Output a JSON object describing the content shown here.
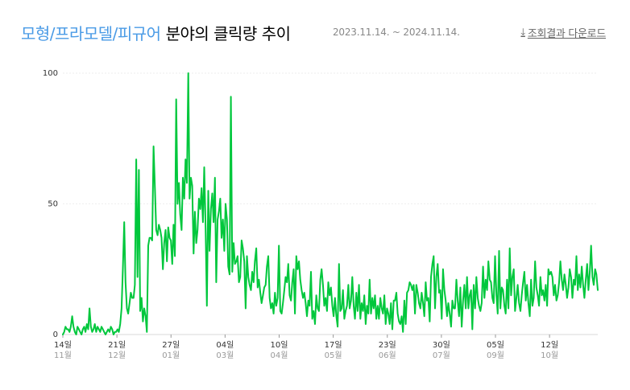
{
  "header": {
    "category": "모형/프라모델/피규어",
    "title_suffix": "분야의 클릭량 추이",
    "date_range": "2023.11.14. ~ 2024.11.14.",
    "download_label": "조회결과 다운로드"
  },
  "chart_data": {
    "type": "line",
    "title": "모형/프라모델/피규어 분야의 클릭량 추이",
    "xlabel": "",
    "ylabel": "",
    "x_start": "2023-11-14",
    "x_end": "2024-11-14",
    "ylim": [
      0,
      100
    ],
    "y_ticks": [
      0,
      50,
      100
    ],
    "grid": true,
    "color": "#00c73c",
    "x_ticks": [
      {
        "day": "14일",
        "month": "11월",
        "date": "2023-11-14"
      },
      {
        "day": "21일",
        "month": "12월",
        "date": "2023-12-21"
      },
      {
        "day": "27일",
        "month": "01월",
        "date": "2024-01-27"
      },
      {
        "day": "04일",
        "month": "03월",
        "date": "2024-03-04"
      },
      {
        "day": "10일",
        "month": "04월",
        "date": "2024-04-10"
      },
      {
        "day": "17일",
        "month": "05월",
        "date": "2024-05-17"
      },
      {
        "day": "23일",
        "month": "06월",
        "date": "2024-06-23"
      },
      {
        "day": "30일",
        "month": "07월",
        "date": "2024-07-30"
      },
      {
        "day": "05일",
        "month": "09월",
        "date": "2024-09-05"
      },
      {
        "day": "12일",
        "month": "10월",
        "date": "2024-10-12"
      }
    ],
    "values": [
      0,
      1,
      3,
      2,
      2,
      1,
      3,
      7,
      3,
      1,
      0,
      3,
      2,
      1,
      0,
      2,
      3,
      1,
      4,
      2,
      10,
      3,
      1,
      2,
      4,
      1,
      3,
      2,
      1,
      3,
      2,
      1,
      0,
      1,
      2,
      1,
      3,
      2,
      0,
      1,
      1,
      2,
      1,
      4,
      10,
      25,
      43,
      20,
      10,
      8,
      12,
      16,
      14,
      14,
      19,
      67,
      22,
      63,
      9,
      14,
      5,
      10,
      7,
      1,
      34,
      37,
      37,
      36,
      72,
      56,
      40,
      38,
      42,
      40,
      37,
      25,
      35,
      40,
      28,
      41,
      37,
      36,
      27,
      42,
      30,
      90,
      50,
      58,
      46,
      40,
      60,
      52,
      67,
      58,
      100,
      52,
      60,
      57,
      31,
      47,
      35,
      40,
      52,
      48,
      56,
      43,
      64,
      41,
      11,
      55,
      32,
      48,
      54,
      43,
      60,
      20,
      44,
      47,
      52,
      37,
      44,
      32,
      50,
      44,
      26,
      23,
      91,
      24,
      35,
      27,
      28,
      30,
      20,
      22,
      36,
      33,
      28,
      10,
      30,
      22,
      19,
      17,
      24,
      20,
      28,
      33,
      18,
      21,
      16,
      12,
      15,
      18,
      19,
      26,
      30,
      14,
      10,
      12,
      8,
      16,
      11,
      14,
      34,
      9,
      8,
      12,
      17,
      22,
      20,
      27,
      15,
      13,
      20,
      25,
      8,
      30,
      25,
      28,
      21,
      17,
      14,
      16,
      12,
      7,
      13,
      11,
      24,
      6,
      9,
      4,
      15,
      10,
      9,
      21,
      25,
      19,
      11,
      14,
      9,
      20,
      15,
      18,
      11,
      7,
      14,
      7,
      3,
      27,
      9,
      10,
      17,
      6,
      9,
      11,
      19,
      10,
      13,
      22,
      11,
      6,
      16,
      9,
      19,
      6,
      12,
      9,
      15,
      4,
      11,
      8,
      21,
      8,
      14,
      10,
      15,
      6,
      11,
      6,
      14,
      10,
      8,
      15,
      4,
      10,
      8,
      4,
      12,
      2,
      13,
      13,
      16,
      8,
      5,
      4,
      7,
      1,
      13,
      4,
      16,
      17,
      20,
      19,
      17,
      19,
      8,
      19,
      16,
      12,
      10,
      16,
      12,
      7,
      20,
      13,
      14,
      5,
      22,
      27,
      30,
      10,
      22,
      27,
      16,
      17,
      6,
      25,
      17,
      13,
      7,
      12,
      8,
      3,
      13,
      10,
      10,
      21,
      13,
      7,
      18,
      3,
      13,
      19,
      10,
      22,
      10,
      15,
      17,
      2,
      19,
      10,
      22,
      14,
      11,
      9,
      12,
      26,
      14,
      21,
      17,
      28,
      21,
      20,
      14,
      12,
      30,
      15,
      8,
      32,
      10,
      18,
      17,
      11,
      8,
      21,
      10,
      33,
      15,
      22,
      25,
      9,
      14,
      19,
      12,
      9,
      15,
      20,
      24,
      13,
      19,
      12,
      7,
      21,
      11,
      14,
      28,
      18,
      15,
      11,
      22,
      15,
      17,
      13,
      19,
      11,
      25,
      23,
      24,
      22,
      15,
      19,
      13,
      15,
      20,
      28,
      21,
      17,
      23,
      19,
      14,
      18,
      25,
      22,
      14,
      21,
      19,
      30,
      17,
      23,
      18,
      26,
      19,
      14,
      21,
      27,
      17,
      24,
      34,
      22,
      19,
      25,
      23,
      17
    ]
  }
}
